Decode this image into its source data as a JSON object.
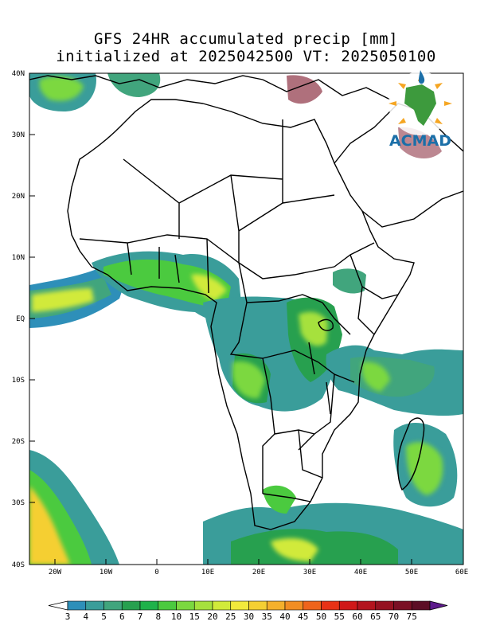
{
  "title_line1": "GFS 24HR accumulated precip [mm]",
  "title_line2": "initialized at 2025042500 VT: 2025050100",
  "logo_text": "ACMAD",
  "lat_labels": [
    "40N",
    "30N",
    "20N",
    "10N",
    "EQ",
    "10S",
    "20S",
    "30S",
    "40S"
  ],
  "lon_labels": [
    "20W",
    "10W",
    "0",
    "10E",
    "20E",
    "30E",
    "40E",
    "50E",
    "60E"
  ],
  "colorbar": {
    "labels": [
      "3",
      "4",
      "5",
      "6",
      "7",
      "8",
      "10",
      "15",
      "20",
      "25",
      "30",
      "35",
      "40",
      "45",
      "50",
      "55",
      "60",
      "65",
      "70",
      "75"
    ],
    "colors": [
      "#2e8fb9",
      "#3a9d9a",
      "#41a57d",
      "#27a04f",
      "#1fb24a",
      "#4bca3f",
      "#7bd840",
      "#a6e13d",
      "#d1ea3a",
      "#f2e93c",
      "#f5cf33",
      "#f5b02c",
      "#f28d23",
      "#ee641b",
      "#e83216",
      "#d01818",
      "#b3141e",
      "#951221",
      "#7a1024",
      "#5c0e25"
    ],
    "end_color": "#5d1a8c"
  },
  "colors": {
    "land_outline": "#000000",
    "frame": "#000000"
  }
}
